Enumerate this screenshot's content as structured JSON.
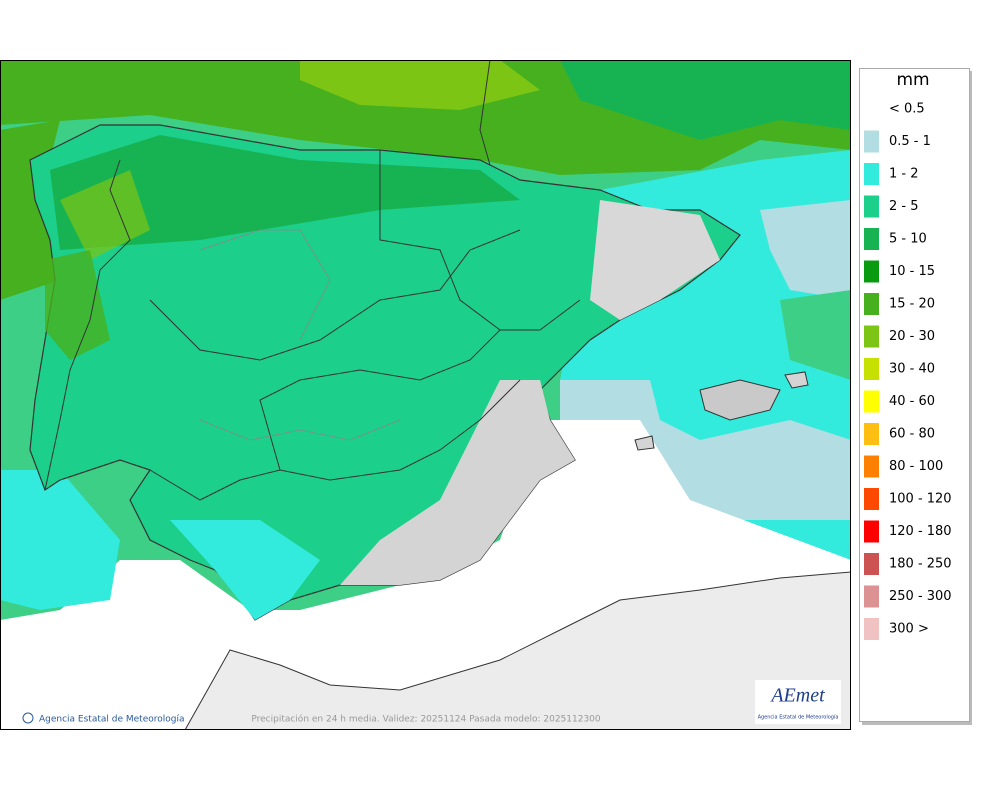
{
  "legend": {
    "title": "mm",
    "items": [
      {
        "label": "< 0.5"
      },
      {
        "label": "0.5 - 1",
        "color": "#b2dde2"
      },
      {
        "label": "1 - 2",
        "color": "#33ebdc"
      },
      {
        "label": "2 - 5",
        "color": "#1ccf8a"
      },
      {
        "label": "5 - 10",
        "color": "#17b353"
      },
      {
        "label": "10 - 15",
        "color": "#0a9a10"
      },
      {
        "label": "15 - 20",
        "color": "#46b01e"
      },
      {
        "label": "20 - 30",
        "color": "#7dc514"
      },
      {
        "label": "30 - 40",
        "color": "#c6e000"
      },
      {
        "label": "40 - 60",
        "color": "#ffff00"
      },
      {
        "label": "60 - 80",
        "color": "#ffbf12"
      },
      {
        "label": "80 - 100",
        "color": "#ff8000"
      },
      {
        "label": "100 - 120",
        "color": "#ff4800"
      },
      {
        "label": "120 - 180",
        "color": "#ff0000"
      },
      {
        "label": "180 - 250",
        "color": "#cd5252"
      },
      {
        "label": "250 - 300",
        "color": "#dc9292"
      },
      {
        "label": "300 >",
        "color": "#f0c2c2"
      }
    ]
  },
  "footer": {
    "credit": "Agencia Estatal de Meteorología",
    "caption": "Precipitación en 24 h media. Validez: 20251124 Pasada modelo: 2025112300"
  },
  "logo": {
    "name": "AEmet",
    "subtitle": "Agencia Estatal de Meteorología"
  }
}
